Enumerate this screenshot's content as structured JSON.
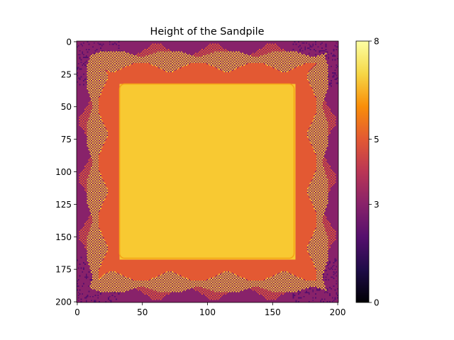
{
  "chart_data": {
    "type": "heatmap",
    "title": "Height of the Sandpile",
    "xlabel": "",
    "ylabel": "",
    "grid_size": 201,
    "xlim": [
      0,
      200
    ],
    "ylim": [
      200,
      0
    ],
    "x_ticks": [
      0,
      50,
      100,
      150,
      200
    ],
    "y_ticks": [
      0,
      25,
      50,
      75,
      100,
      125,
      150,
      175,
      200
    ],
    "grid": false,
    "colormap": "inferno",
    "colorbar": {
      "range": [
        0,
        8
      ],
      "ticks": [
        0,
        3,
        5,
        8
      ],
      "placement": "right"
    },
    "regions": {
      "central_plateau": {
        "value": 7,
        "x_range": [
          33,
          167
        ],
        "y_range": [
          33,
          167
        ],
        "color": "#f8c932"
      },
      "inner_band": {
        "value": 5,
        "color": "#e35933"
      },
      "outer_background": {
        "value": 3,
        "color": "#8a226a"
      }
    }
  }
}
